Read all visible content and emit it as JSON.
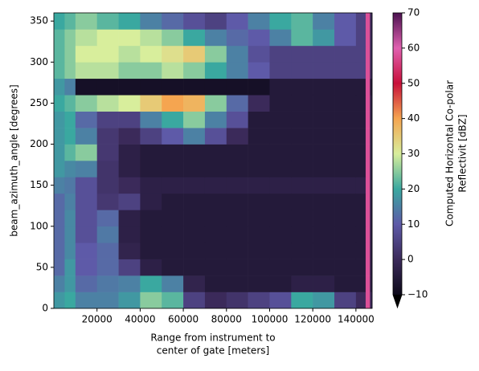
{
  "chart_data": {
    "type": "heatmap",
    "xlabel": [
      "Range from instrument to",
      "center of gate [meters]"
    ],
    "ylabel": "beam_azimuth_angle [degrees]",
    "colorbar_label": [
      "Computed Horizontal Co-polar",
      "Reflectivit [dBZ]"
    ],
    "x_edges": [
      0,
      5000,
      10000,
      20000,
      30000,
      40000,
      50000,
      60000,
      70000,
      80000,
      90000,
      100000,
      110000,
      120000,
      130000,
      140000,
      144500,
      146500,
      147500
    ],
    "y_edges": [
      0,
      20,
      40,
      60,
      80,
      100,
      120,
      140,
      160,
      180,
      200,
      220,
      240,
      260,
      280,
      300,
      320,
      340,
      360
    ],
    "values": [
      [
        18,
        20,
        15,
        15,
        18,
        25,
        22,
        5,
        0,
        2,
        5,
        8,
        20,
        18,
        5,
        0,
        58,
        0
      ],
      [
        15,
        18,
        12,
        14,
        15,
        20,
        15,
        -2,
        -5,
        -5,
        -5,
        -5,
        -3,
        -3,
        -5,
        -5,
        58,
        -3
      ],
      [
        12,
        18,
        10,
        12,
        5,
        -3,
        -5,
        -5,
        -5,
        -5,
        -5,
        -5,
        -5,
        -5,
        -5,
        -5,
        58,
        -3
      ],
      [
        12,
        16,
        10,
        12,
        -2,
        -5,
        -5,
        -5,
        -5,
        -5,
        -5,
        -5,
        -5,
        -5,
        -5,
        -5,
        58,
        -3
      ],
      [
        12,
        16,
        8,
        14,
        -3,
        -5,
        -5,
        -5,
        -5,
        -5,
        -5,
        -5,
        -5,
        -5,
        -5,
        -5,
        58,
        -3
      ],
      [
        12,
        16,
        8,
        12,
        -3,
        -5,
        -5,
        -5,
        -5,
        -5,
        -5,
        -5,
        -5,
        -5,
        -5,
        -5,
        58,
        -3
      ],
      [
        12,
        15,
        8,
        3,
        5,
        -3,
        -5,
        -5,
        -5,
        -5,
        -5,
        -5,
        -5,
        -5,
        -5,
        -5,
        58,
        -3
      ],
      [
        15,
        14,
        8,
        2,
        0,
        -3,
        -3,
        -3,
        -3,
        -3,
        -3,
        -3,
        -3,
        -3,
        -3,
        -3,
        58,
        -3
      ],
      [
        18,
        16,
        15,
        2,
        -3,
        -5,
        -5,
        -5,
        -5,
        -5,
        -5,
        -5,
        -5,
        -5,
        -5,
        -5,
        58,
        -3
      ],
      [
        18,
        22,
        25,
        3,
        -3,
        -5,
        -5,
        -5,
        -5,
        -5,
        -5,
        -5,
        -5,
        -5,
        -5,
        -5,
        58,
        -3
      ],
      [
        18,
        20,
        15,
        3,
        0,
        5,
        10,
        15,
        8,
        0,
        -5,
        -5,
        -5,
        -5,
        -5,
        -5,
        58,
        -3
      ],
      [
        18,
        20,
        12,
        5,
        5,
        15,
        20,
        25,
        15,
        8,
        -5,
        -5,
        -5,
        -5,
        -5,
        -5,
        58,
        -3
      ],
      [
        20,
        22,
        25,
        28,
        30,
        35,
        40,
        38,
        25,
        12,
        0,
        -5,
        -5,
        -5,
        -5,
        -5,
        58,
        -3
      ],
      [
        18,
        15,
        -8,
        -8,
        -8,
        -8,
        -8,
        -8,
        -8,
        -8,
        -8,
        -5,
        -5,
        -5,
        -5,
        -5,
        58,
        -5
      ],
      [
        22,
        25,
        28,
        28,
        25,
        25,
        28,
        25,
        20,
        15,
        10,
        5,
        5,
        5,
        5,
        5,
        58,
        0
      ],
      [
        22,
        25,
        30,
        30,
        28,
        30,
        32,
        35,
        25,
        15,
        8,
        5,
        5,
        5,
        5,
        5,
        58,
        0
      ],
      [
        22,
        25,
        28,
        30,
        30,
        28,
        25,
        20,
        15,
        12,
        10,
        15,
        22,
        18,
        10,
        5,
        58,
        0
      ],
      [
        20,
        22,
        25,
        22,
        20,
        15,
        12,
        8,
        5,
        10,
        15,
        20,
        22,
        15,
        10,
        5,
        58,
        0
      ]
    ],
    "xlim": [
      0,
      147500
    ],
    "ylim": [
      0,
      360
    ],
    "xticks": [
      20000,
      40000,
      60000,
      80000,
      100000,
      120000,
      140000
    ],
    "yticks": [
      0,
      50,
      100,
      150,
      200,
      250,
      300,
      350
    ],
    "clim": [
      -10,
      70
    ],
    "cticks": [
      {
        "value": -10,
        "label": "−10"
      },
      0,
      10,
      20,
      30,
      40,
      50,
      60,
      70
    ],
    "colormap": [
      "#0d0a1a",
      "#3b2a5a",
      "#5e5aa8",
      "#3aa8a0",
      "#d8ee9c",
      "#f5a550",
      "#c8103a",
      "#e060b0",
      "#4b1250"
    ],
    "under_color": "#000000"
  }
}
